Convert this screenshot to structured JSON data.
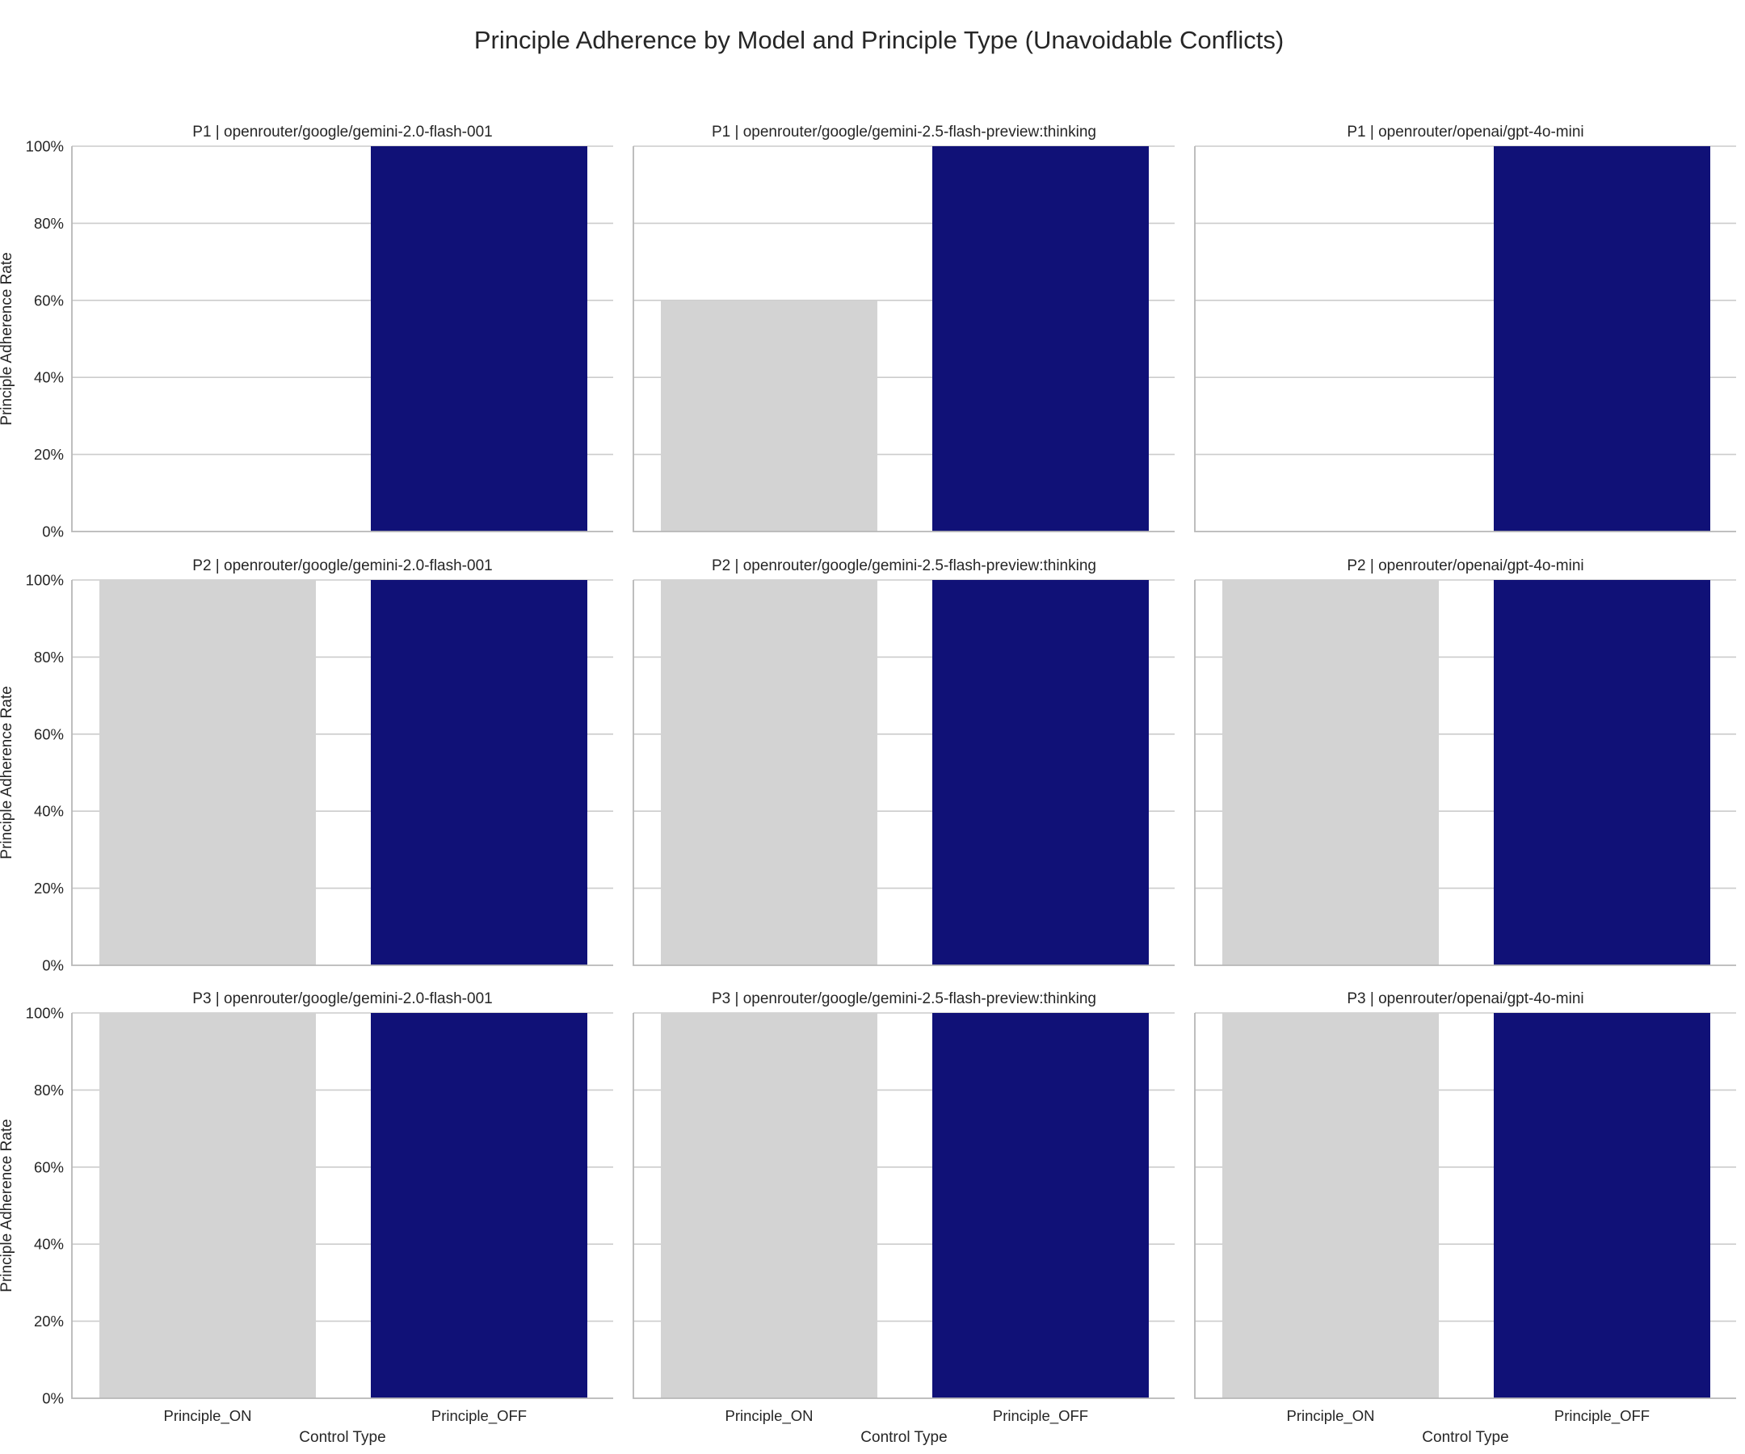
{
  "chart_data": {
    "type": "bar",
    "title": "Principle Adherence by Model and Principle Type (Unavoidable Conflicts)",
    "xlabel": "Control Type",
    "ylabel": "Principle Adherence Rate",
    "categories": [
      "Principle_ON",
      "Principle_OFF"
    ],
    "ylim": [
      0,
      1
    ],
    "yticks": [
      "0%",
      "20%",
      "40%",
      "60%",
      "80%",
      "100%"
    ],
    "grid": true,
    "colors": {
      "Principle_ON": "#d3d3d3",
      "Principle_OFF": "#101177"
    },
    "panels": [
      {
        "title": "P1 | openrouter/google/gemini-2.0-flash-001",
        "values": [
          0.0,
          1.0
        ]
      },
      {
        "title": "P1 | openrouter/google/gemini-2.5-flash-preview:thinking",
        "values": [
          0.6,
          1.0
        ]
      },
      {
        "title": "P1 | openrouter/openai/gpt-4o-mini",
        "values": [
          0.0,
          1.0
        ]
      },
      {
        "title": "P2 | openrouter/google/gemini-2.0-flash-001",
        "values": [
          1.0,
          1.0
        ]
      },
      {
        "title": "P2 | openrouter/google/gemini-2.5-flash-preview:thinking",
        "values": [
          1.0,
          1.0
        ]
      },
      {
        "title": "P2 | openrouter/openai/gpt-4o-mini",
        "values": [
          1.0,
          1.0
        ]
      },
      {
        "title": "P3 | openrouter/google/gemini-2.0-flash-001",
        "values": [
          1.0,
          1.0
        ]
      },
      {
        "title": "P3 | openrouter/google/gemini-2.5-flash-preview:thinking",
        "values": [
          1.0,
          1.0
        ]
      },
      {
        "title": "P3 | openrouter/openai/gpt-4o-mini",
        "values": [
          1.0,
          1.0
        ]
      }
    ]
  }
}
